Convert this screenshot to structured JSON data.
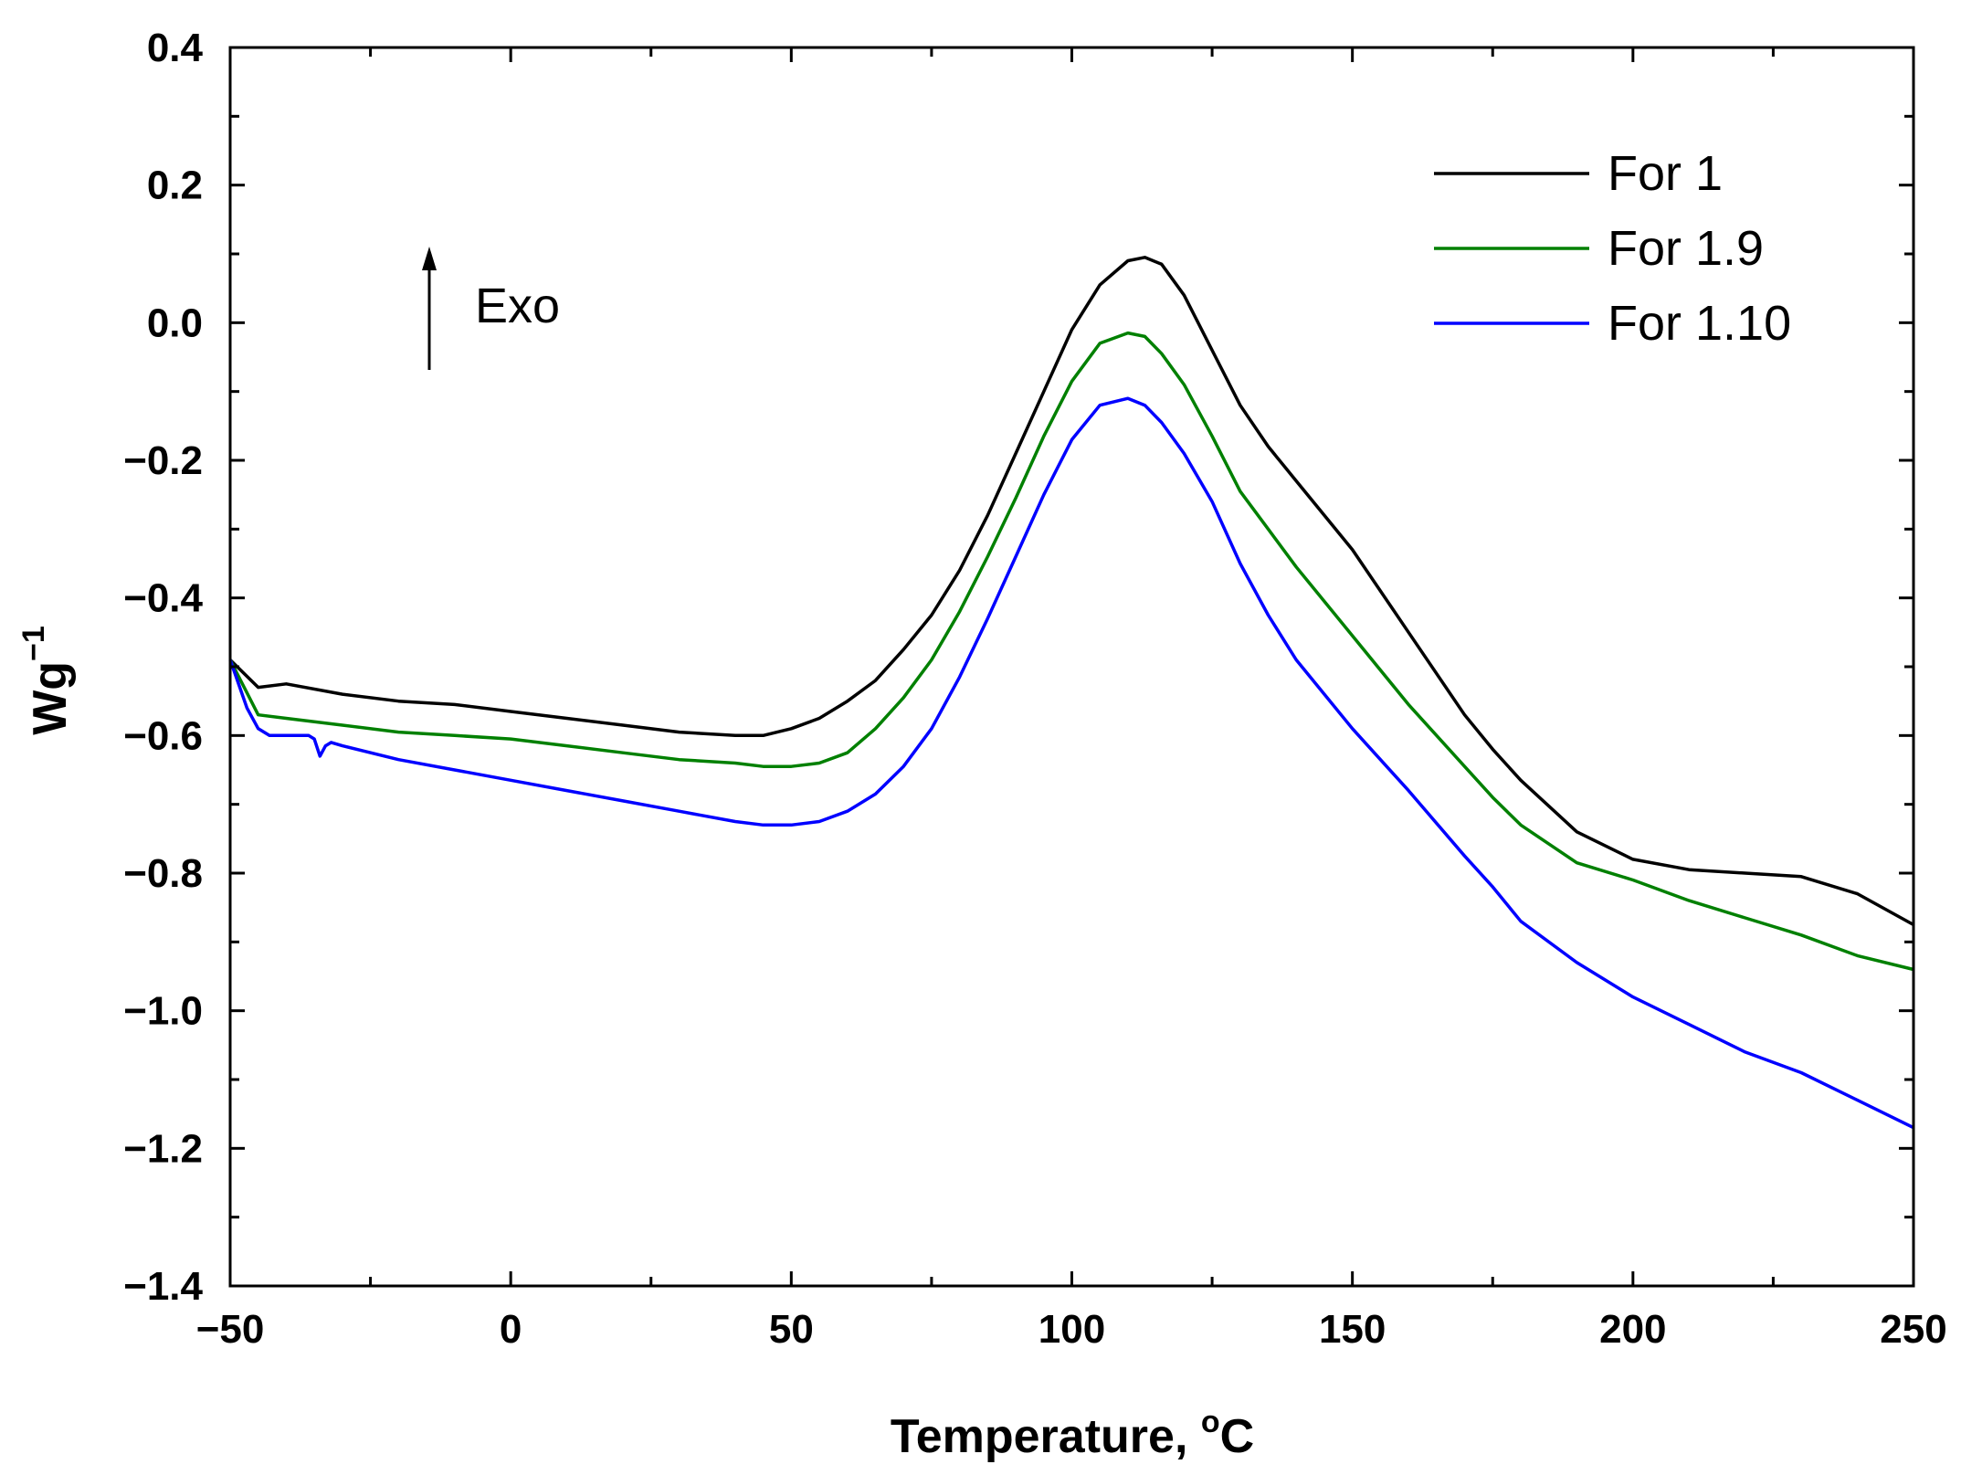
{
  "chart_data": {
    "type": "line",
    "title": "",
    "xlabel": "Temperature, ",
    "xlabel_sup": "o",
    "xlabel_unit": "C",
    "ylabel": "Wg",
    "ylabel_sup": "−1",
    "xlim": [
      -50,
      250
    ],
    "ylim": [
      -1.4,
      0.4
    ],
    "xticks": [
      -50,
      0,
      50,
      100,
      150,
      200,
      250
    ],
    "xtick_labels": [
      "−50",
      "0",
      "50",
      "100",
      "150",
      "200",
      "250"
    ],
    "yticks": [
      0.4,
      0.2,
      0.0,
      -0.2,
      -0.4,
      -0.6,
      -0.8,
      -1.0,
      -1.2,
      -1.4
    ],
    "ytick_labels": [
      "0.4",
      "0.2",
      "0.0",
      "−0.2",
      "−0.4",
      "−0.6",
      "−0.8",
      "−1.0",
      "−1.2",
      "−1.4"
    ],
    "grid": false,
    "legend_position": "top-right",
    "annotation": {
      "text": "Exo",
      "arrow": "up"
    },
    "series": [
      {
        "name": "For 1",
        "color": "#000000",
        "x": [
          -50,
          -45,
          -40,
          -30,
          -20,
          -10,
          0,
          10,
          20,
          30,
          40,
          45,
          50,
          55,
          60,
          65,
          70,
          75,
          80,
          85,
          90,
          95,
          100,
          105,
          110,
          113,
          116,
          120,
          125,
          130,
          135,
          140,
          150,
          160,
          170,
          175,
          180,
          190,
          200,
          210,
          220,
          230,
          240,
          250
        ],
        "y": [
          -0.49,
          -0.53,
          -0.525,
          -0.54,
          -0.55,
          -0.555,
          -0.565,
          -0.575,
          -0.585,
          -0.595,
          -0.6,
          -0.6,
          -0.59,
          -0.575,
          -0.55,
          -0.52,
          -0.475,
          -0.425,
          -0.36,
          -0.28,
          -0.19,
          -0.1,
          -0.01,
          0.055,
          0.09,
          0.095,
          0.085,
          0.04,
          -0.04,
          -0.12,
          -0.18,
          -0.23,
          -0.33,
          -0.45,
          -0.57,
          -0.62,
          -0.665,
          -0.74,
          -0.78,
          -0.795,
          -0.8,
          -0.805,
          -0.83,
          -0.875
        ]
      },
      {
        "name": "For 1.9",
        "color": "#008000",
        "x": [
          -50,
          -45,
          -40,
          -30,
          -20,
          -10,
          0,
          10,
          20,
          30,
          40,
          45,
          50,
          55,
          60,
          65,
          70,
          75,
          80,
          85,
          90,
          95,
          100,
          105,
          110,
          113,
          116,
          120,
          125,
          130,
          135,
          140,
          150,
          160,
          170,
          175,
          180,
          190,
          200,
          210,
          220,
          230,
          240,
          250
        ],
        "y": [
          -0.49,
          -0.57,
          -0.575,
          -0.585,
          -0.595,
          -0.6,
          -0.605,
          -0.615,
          -0.625,
          -0.635,
          -0.64,
          -0.645,
          -0.645,
          -0.64,
          -0.625,
          -0.59,
          -0.545,
          -0.49,
          -0.42,
          -0.34,
          -0.255,
          -0.165,
          -0.085,
          -0.03,
          -0.015,
          -0.02,
          -0.045,
          -0.09,
          -0.165,
          -0.245,
          -0.3,
          -0.355,
          -0.455,
          -0.555,
          -0.645,
          -0.69,
          -0.73,
          -0.785,
          -0.81,
          -0.84,
          -0.865,
          -0.89,
          -0.92,
          -0.94
        ]
      },
      {
        "name": "For 1.10",
        "color": "#0000ff",
        "x": [
          -50,
          -47,
          -45,
          -43,
          -40,
          -36,
          -35,
          -34,
          -33,
          -32,
          -30,
          -20,
          -10,
          0,
          10,
          20,
          30,
          40,
          45,
          50,
          55,
          60,
          65,
          70,
          75,
          80,
          85,
          90,
          95,
          100,
          105,
          110,
          113,
          116,
          120,
          125,
          130,
          135,
          140,
          150,
          160,
          170,
          175,
          180,
          190,
          200,
          210,
          220,
          230,
          240,
          250
        ],
        "y": [
          -0.49,
          -0.56,
          -0.59,
          -0.6,
          -0.6,
          -0.6,
          -0.605,
          -0.63,
          -0.615,
          -0.61,
          -0.615,
          -0.635,
          -0.65,
          -0.665,
          -0.68,
          -0.695,
          -0.71,
          -0.725,
          -0.73,
          -0.73,
          -0.725,
          -0.71,
          -0.685,
          -0.645,
          -0.59,
          -0.515,
          -0.43,
          -0.34,
          -0.25,
          -0.17,
          -0.12,
          -0.11,
          -0.12,
          -0.145,
          -0.19,
          -0.26,
          -0.35,
          -0.425,
          -0.49,
          -0.59,
          -0.68,
          -0.775,
          -0.82,
          -0.87,
          -0.93,
          -0.98,
          -1.02,
          -1.06,
          -1.09,
          -1.13,
          -1.17
        ]
      }
    ]
  }
}
